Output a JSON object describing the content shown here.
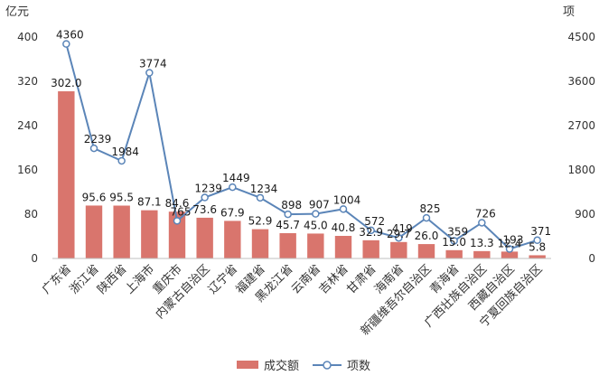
{
  "chart_data": {
    "type": "bar",
    "left_unit": "亿元",
    "right_unit": "项",
    "categories": [
      "广东省",
      "浙江省",
      "陕西省",
      "上海市",
      "重庆市",
      "内蒙古自治区",
      "辽宁省",
      "福建省",
      "黑龙江省",
      "云南省",
      "吉林省",
      "甘肃省",
      "海南省",
      "新疆维吾尔自治区",
      "青海省",
      "广西壮族自治区",
      "西藏自治区",
      "宁夏回族自治区"
    ],
    "series": [
      {
        "name": "成交额",
        "type": "bar",
        "axis": "left",
        "color": "#d9756d",
        "values": [
          302.0,
          95.6,
          95.5,
          87.1,
          84.6,
          73.6,
          67.9,
          52.9,
          45.7,
          45.0,
          40.8,
          32.9,
          29.7,
          26.0,
          15.0,
          13.3,
          12.4,
          5.8
        ],
        "labels": [
          "302.0",
          "95.6",
          "95.5",
          "87.1",
          "84.6",
          "73.6",
          "67.9",
          "52.9",
          "45.7",
          "45.0",
          "40.8",
          "32.9",
          "29.7",
          "26.0",
          "15.0",
          "13.3",
          "12.4",
          "5.8"
        ]
      },
      {
        "name": "项数",
        "type": "line",
        "axis": "right",
        "color": "#5b85b8",
        "values": [
          4360,
          2239,
          1984,
          3774,
          765,
          1239,
          1449,
          1234,
          898,
          907,
          1004,
          572,
          419,
          825,
          359,
          726,
          193,
          371
        ],
        "labels": [
          "4360",
          "2239",
          "1984",
          "3774",
          "765",
          "1239",
          "1449",
          "1234",
          "898",
          "907",
          "1004",
          "572",
          "419",
          "825",
          "359",
          "726",
          "193",
          "371"
        ]
      }
    ],
    "y_left": {
      "min": 0,
      "max": 400,
      "ticks": [
        "0",
        "80",
        "160",
        "240",
        "320",
        "400"
      ]
    },
    "y_right": {
      "min": 0,
      "max": 4500,
      "ticks": [
        "0",
        "900",
        "1800",
        "2700",
        "3600",
        "4500"
      ]
    },
    "legend": {
      "position": "bottom",
      "items": [
        "成交额",
        "项数"
      ]
    },
    "grid": false
  }
}
